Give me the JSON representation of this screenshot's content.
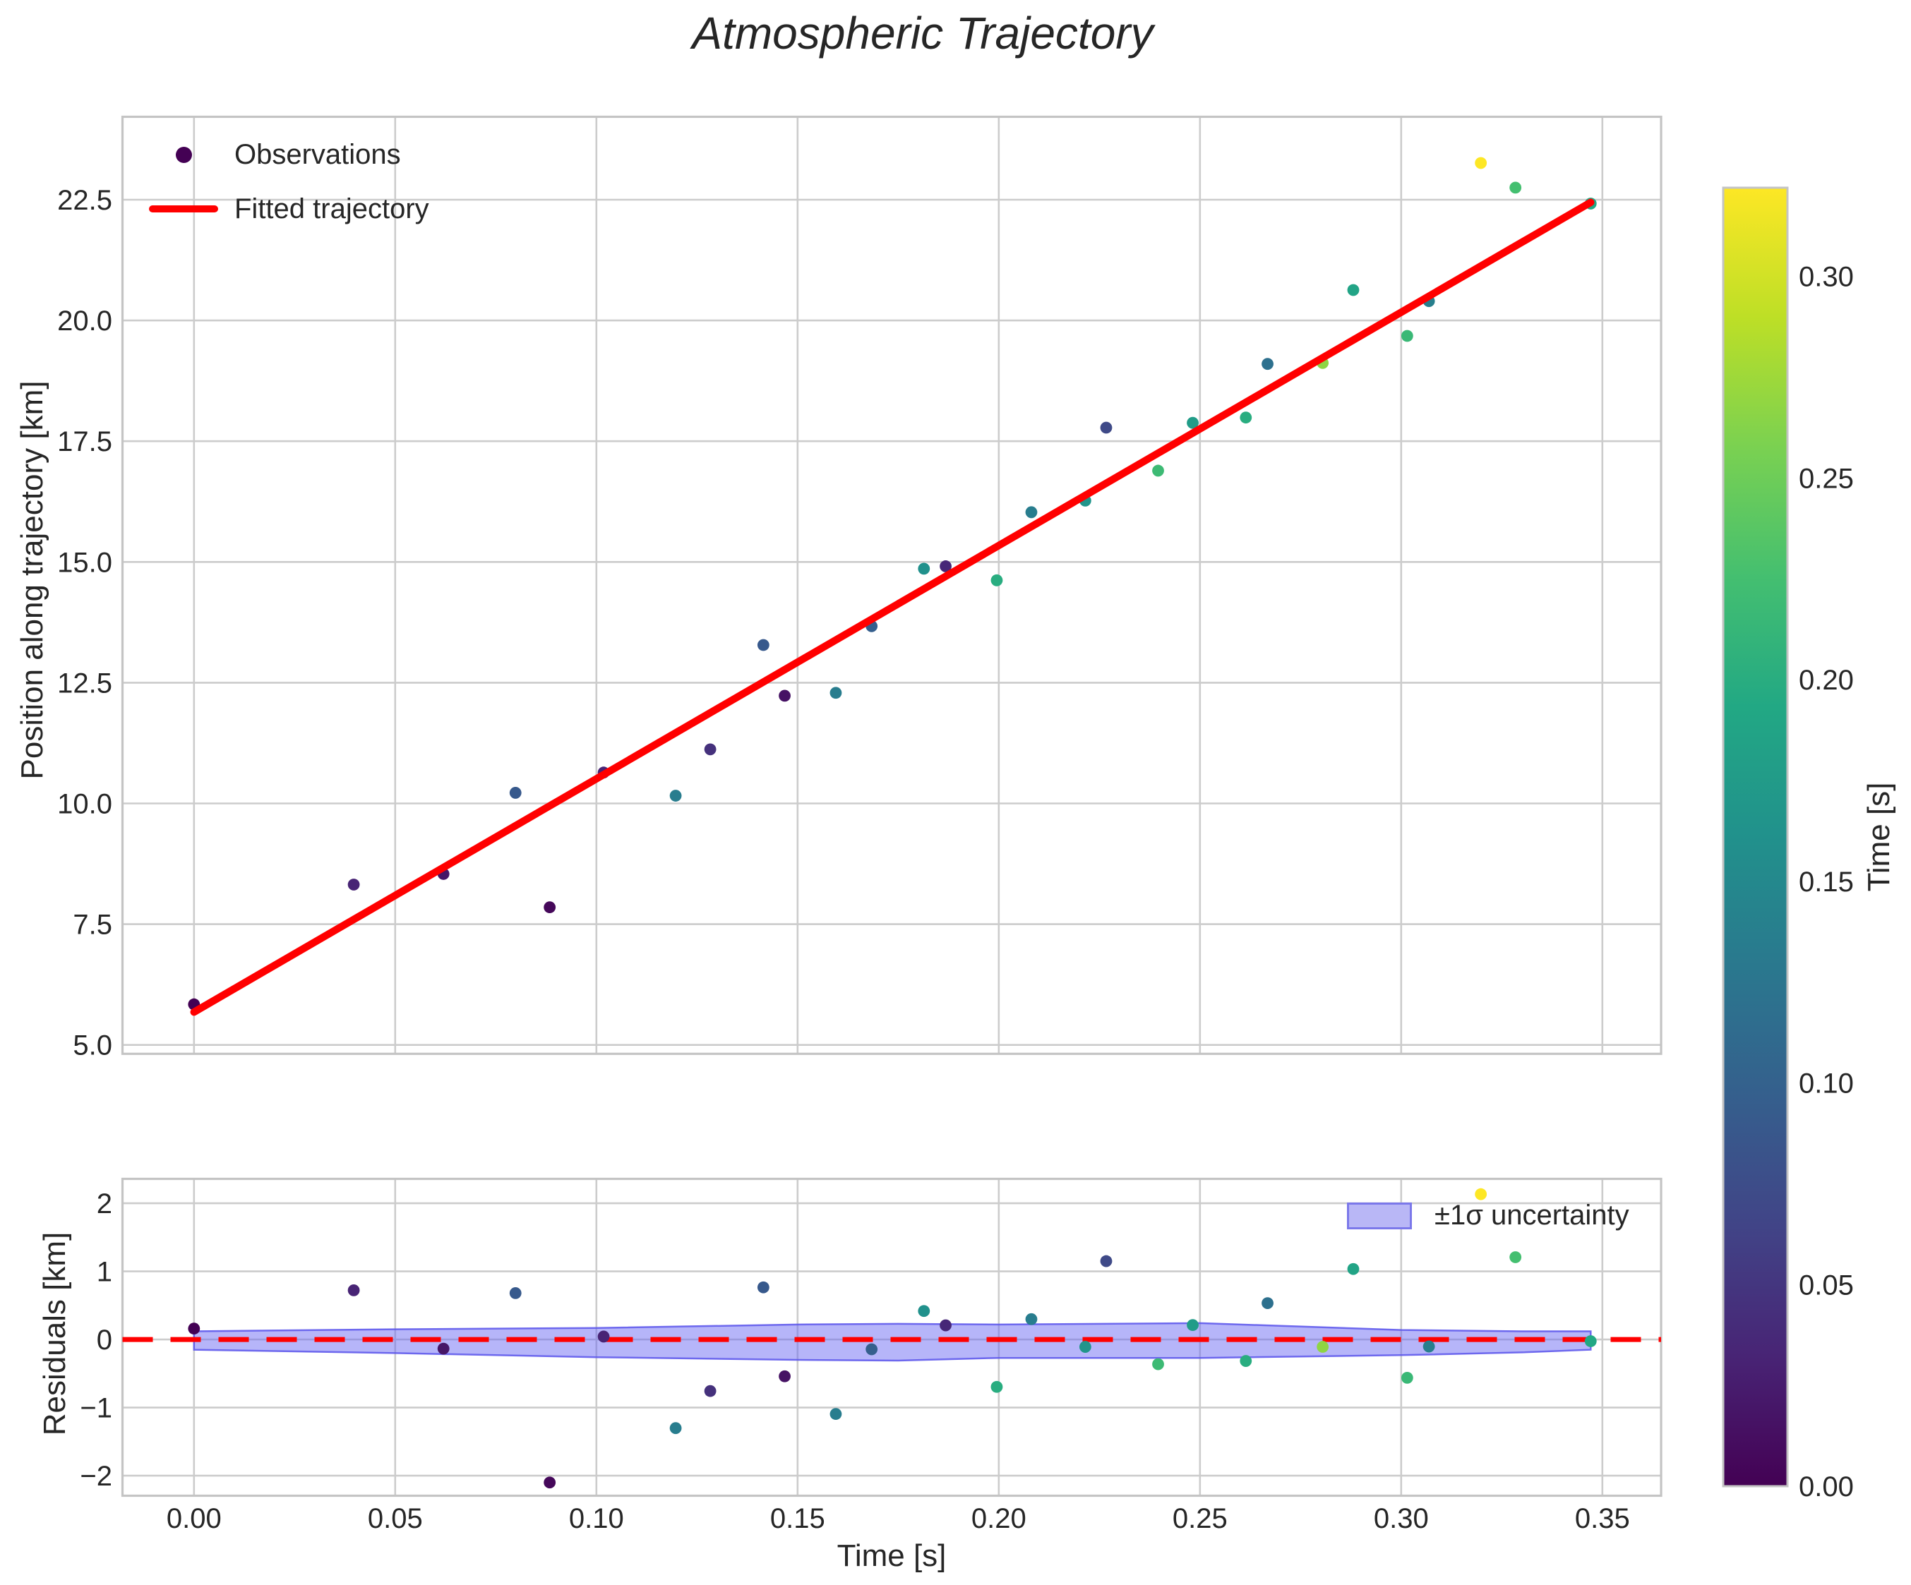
{
  "title": "Atmospheric Trajectory",
  "chart_data": {
    "type": "scatter",
    "title": "Atmospheric Trajectory",
    "grid": true,
    "top_panel": {
      "ylabel": "Position along trajectory [km]",
      "yticks": [
        5.0,
        7.5,
        10.0,
        12.5,
        15.0,
        17.5,
        20.0,
        22.5
      ],
      "ytick_labels": [
        "5.0",
        "7.5",
        "10.0",
        "12.5",
        "15.0",
        "17.5",
        "20.0",
        "22.5"
      ],
      "ylim": [
        4.8,
        24.2
      ],
      "xlim": [
        -0.018,
        0.365
      ],
      "legend": {
        "observations_label": "Observations",
        "fit_label": "Fitted trajectory"
      }
    },
    "bottom_panel": {
      "ylabel": "Residuals [km]",
      "xlabel": "Time [s]",
      "yticks": [
        -2,
        -1,
        0,
        1,
        2
      ],
      "ytick_labels": [
        "−2",
        "−1",
        "0",
        "1",
        "2"
      ],
      "ylim": [
        -2.36,
        2.36
      ],
      "legend_label": "±1σ uncertainty",
      "zero_line": 0
    },
    "xticks": [
      0.0,
      0.05,
      0.1,
      0.15,
      0.2,
      0.25,
      0.3,
      0.35
    ],
    "xtick_labels": [
      "0.00",
      "0.05",
      "0.10",
      "0.15",
      "0.20",
      "0.25",
      "0.30",
      "0.35"
    ],
    "observations": {
      "time_s": [
        0.0,
        0.0397,
        0.062,
        0.0799,
        0.0884,
        0.1018,
        0.1197,
        0.1283,
        0.1415,
        0.1468,
        0.1595,
        0.1684,
        0.1814,
        0.1868,
        0.1995,
        0.2081,
        0.2215,
        0.2267,
        0.2396,
        0.2482,
        0.2614,
        0.2668,
        0.2805,
        0.2881,
        0.3015,
        0.3069,
        0.3198,
        0.3284,
        0.3471
      ],
      "position_km": [
        5.84,
        8.32,
        8.54,
        10.22,
        7.85,
        10.64,
        10.16,
        11.12,
        13.28,
        12.23,
        12.29,
        13.67,
        14.86,
        14.91,
        14.62,
        16.03,
        16.27,
        17.78,
        16.89,
        17.88,
        17.99,
        19.1,
        19.12,
        20.63,
        19.68,
        20.4,
        23.26,
        22.75,
        22.42
      ],
      "color_time_s": [
        0.0,
        0.032,
        0.019,
        0.09,
        0.006,
        0.032,
        0.135,
        0.045,
        0.09,
        0.016,
        0.135,
        0.097,
        0.161,
        0.035,
        0.2,
        0.135,
        0.167,
        0.071,
        0.219,
        0.177,
        0.2,
        0.119,
        0.267,
        0.187,
        0.216,
        0.138,
        0.322,
        0.225,
        0.193
      ]
    },
    "fitted_trajectory": {
      "intercept_km": 5.68,
      "slope_km_per_s": 48.3,
      "t_start": 0.0,
      "t_end": 0.3471
    },
    "uncertainty_band": {
      "t": [
        0.0,
        0.05,
        0.1,
        0.15,
        0.175,
        0.2,
        0.25,
        0.3,
        0.33,
        0.3471
      ],
      "upper_km": [
        0.12,
        0.15,
        0.17,
        0.22,
        0.23,
        0.22,
        0.24,
        0.14,
        0.12,
        0.12
      ],
      "lower_km": [
        -0.15,
        -0.2,
        -0.26,
        -0.3,
        -0.31,
        -0.27,
        -0.27,
        -0.23,
        -0.19,
        -0.15
      ]
    },
    "colorbar": {
      "label": "Time [s]",
      "vmin": 0.0,
      "vmax": 0.322,
      "ticks": [
        0.0,
        0.05,
        0.1,
        0.15,
        0.2,
        0.25,
        0.3
      ],
      "tick_labels": [
        "0.00",
        "0.05",
        "0.10",
        "0.15",
        "0.20",
        "0.25",
        "0.30"
      ]
    },
    "viridis_colormap": [
      [
        0.0,
        "#440154"
      ],
      [
        0.1,
        "#482475"
      ],
      [
        0.2,
        "#414487"
      ],
      [
        0.3,
        "#355f8d"
      ],
      [
        0.4,
        "#2a788e"
      ],
      [
        0.5,
        "#21918c"
      ],
      [
        0.6,
        "#22a884"
      ],
      [
        0.7,
        "#44bf70"
      ],
      [
        0.8,
        "#7ad151"
      ],
      [
        0.9,
        "#bddf26"
      ],
      [
        1.0,
        "#fde725"
      ]
    ]
  },
  "style": {
    "background": "#ffffff",
    "text_color": "#262626",
    "grid_color": "#cccccc",
    "spine_color": "#c4c4c4",
    "fit_line_color": "#ff0000",
    "zero_line_color": "#ff0000",
    "band_fill": "rgba(100,97,242,0.47)",
    "band_edge": "rgba(90,85,235,0.85)",
    "legend_marker_color": "#440154",
    "legend_band_fill": "#b9b7f6",
    "legend_band_edge": "#7b78ea"
  }
}
